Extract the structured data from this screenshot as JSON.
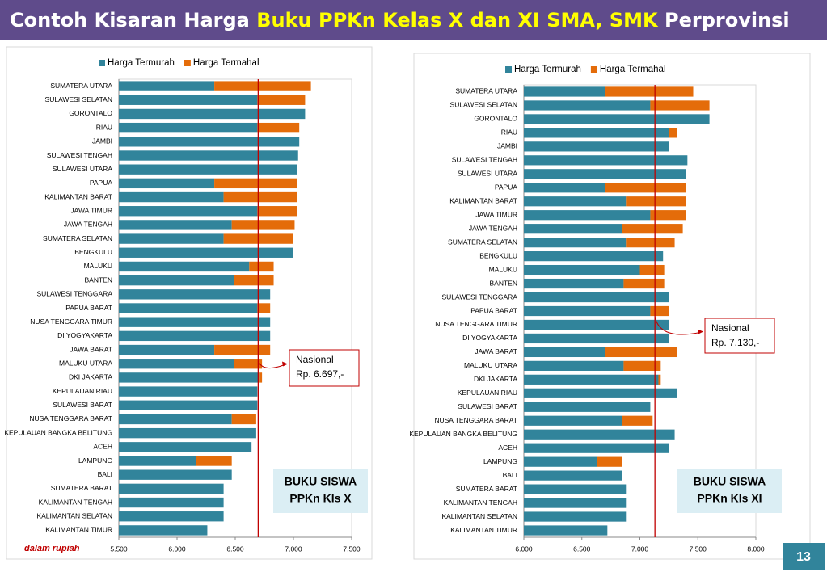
{
  "header": {
    "title_plain": "Contoh Kisaran Harga",
    "title_highlight": "Buku PPKn Kelas X dan XI SMA, SMK",
    "title_end": "Perprovinsi"
  },
  "note": "dalam rupiah",
  "page_number": "13",
  "chart_data": [
    {
      "type": "bar",
      "orientation": "horizontal",
      "categories": [
        "SUMATERA UTARA",
        "SULAWESI SELATAN",
        "GORONTALO",
        "RIAU",
        "JAMBI",
        "SULAWESI TENGAH",
        "SULAWESI UTARA",
        "PAPUA",
        "KALIMANTAN BARAT",
        "JAWA TIMUR",
        "JAWA TENGAH",
        "SUMATERA SELATAN",
        "BENGKULU",
        "MALUKU",
        "BANTEN",
        "SULAWESI TENGGARA",
        "PAPUA BARAT",
        "NUSA TENGGARA TIMUR",
        "DI YOGYAKARTA",
        "JAWA BARAT",
        "MALUKU UTARA",
        "DKI JAKARTA",
        "KEPULAUAN RIAU",
        "SULAWESI BARAT",
        "NUSA TENGGARA BARAT",
        "KEPULAUAN BANGKA BELITUNG",
        "ACEH",
        "LAMPUNG",
        "BALI",
        "SUMATERA BARAT",
        "KALIMANTAN TENGAH",
        "KALIMANTAN SELATAN",
        "KALIMANTAN TIMUR"
      ],
      "series": [
        {
          "name": "Harga Termurah",
          "color": "#31849b",
          "values": [
            6320,
            6690,
            7100,
            6690,
            7050,
            7040,
            7030,
            6320,
            6400,
            6690,
            6470,
            6400,
            7000,
            6620,
            6490,
            6800,
            6690,
            6800,
            6800,
            6320,
            6490,
            6710,
            6690,
            6690,
            6470,
            6680,
            6640,
            6160,
            6470,
            6400,
            6400,
            6400,
            6260
          ]
        },
        {
          "name": "Harga Termahal",
          "color": "#e46c0a",
          "values": [
            7150,
            7100,
            7100,
            7050,
            7050,
            7040,
            7030,
            7030,
            7030,
            7030,
            7010,
            7000,
            7000,
            6830,
            6830,
            6800,
            6800,
            6800,
            6800,
            6800,
            6730,
            6730,
            6690,
            6690,
            6680,
            6680,
            6640,
            6470,
            6470,
            6400,
            6400,
            6400,
            6260
          ]
        }
      ],
      "xlim": [
        5500,
        7500
      ],
      "xticks": [
        {
          "value": 5500,
          "label": "5.500"
        },
        {
          "value": 6000,
          "label": "6.000"
        },
        {
          "value": 6500,
          "label": "6.500"
        },
        {
          "value": 7000,
          "label": "7.000"
        },
        {
          "value": 7500,
          "label": "7.500"
        }
      ],
      "reference_line": {
        "value": 6697,
        "color": "#c00000",
        "label_lines": [
          "Nasional",
          "Rp. 6.697,-"
        ]
      },
      "book_lines": [
        "BUKU SISWA",
        "PPKn Kls X"
      ]
    },
    {
      "type": "bar",
      "orientation": "horizontal",
      "categories": [
        "SUMATERA UTARA",
        "SULAWESI SELATAN",
        "GORONTALO",
        "RIAU",
        "JAMBI",
        "SULAWESI TENGAH",
        "SULAWESI UTARA",
        "PAPUA",
        "KALIMANTAN BARAT",
        "JAWA TIMUR",
        "JAWA TENGAH",
        "SUMATERA SELATAN",
        "BENGKULU",
        "MALUKU",
        "BANTEN",
        "SULAWESI TENGGARA",
        "PAPUA BARAT",
        "NUSA TENGGARA TIMUR",
        "DI YOGYAKARTA",
        "JAWA BARAT",
        "MALUKU UTARA",
        "DKI JAKARTA",
        "KEPULAUAN RIAU",
        "SULAWESI BARAT",
        "NUSA TENGGARA BARAT",
        "KEPULAUAN BANGKA BELITUNG",
        "ACEH",
        "LAMPUNG",
        "BALI",
        "SUMATERA BARAT",
        "KALIMANTAN TENGAH",
        "KALIMANTAN SELATAN",
        "KALIMANTAN TIMUR"
      ],
      "series": [
        {
          "name": "Harga Termurah",
          "color": "#31849b",
          "values": [
            6700,
            7090,
            7600,
            7250,
            7250,
            7410,
            7400,
            6700,
            6880,
            7090,
            6850,
            6880,
            7200,
            7000,
            6860,
            7250,
            7090,
            7250,
            7250,
            6700,
            6860,
            7160,
            7320,
            7090,
            6850,
            7300,
            7250,
            6630,
            6850,
            6880,
            6880,
            6880,
            6720
          ]
        },
        {
          "name": "Harga Termahal",
          "color": "#e46c0a",
          "values": [
            7460,
            7600,
            7600,
            7320,
            7250,
            7410,
            7400,
            7400,
            7400,
            7400,
            7370,
            7300,
            7200,
            7210,
            7210,
            7250,
            7250,
            7250,
            7250,
            7320,
            7180,
            7180,
            7320,
            7090,
            7110,
            7300,
            7250,
            6850,
            6850,
            6880,
            6880,
            6880,
            6720
          ]
        }
      ],
      "xlim": [
        6000,
        8000
      ],
      "xticks": [
        {
          "value": 6000,
          "label": "6.000"
        },
        {
          "value": 6500,
          "label": "6.500"
        },
        {
          "value": 7000,
          "label": "7.000"
        },
        {
          "value": 7500,
          "label": "7.500"
        },
        {
          "value": 8000,
          "label": "8.000"
        }
      ],
      "reference_line": {
        "value": 7130,
        "color": "#c00000",
        "label_lines": [
          "Nasional",
          "Rp. 7.130,-"
        ]
      },
      "book_lines": [
        "BUKU SISWA",
        "PPKn Kls XI"
      ]
    }
  ]
}
